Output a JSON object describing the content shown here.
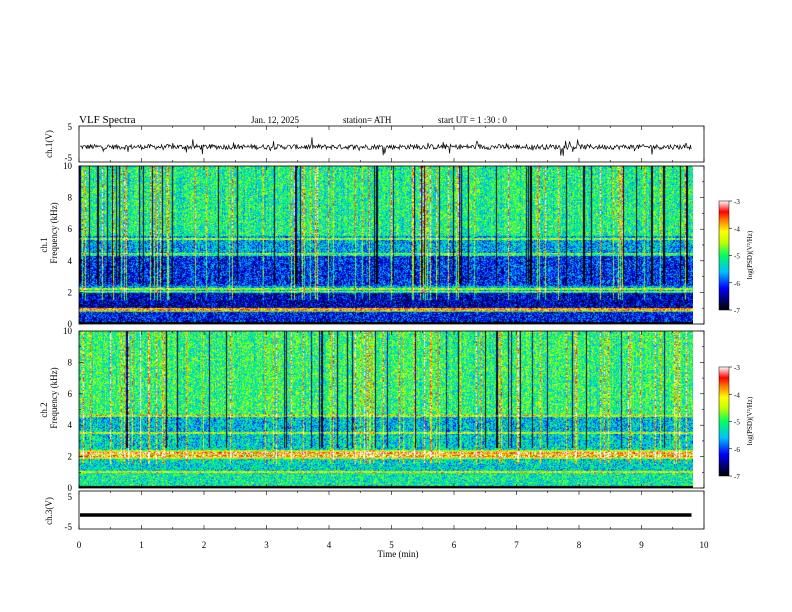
{
  "header": {
    "title": "VLF  Spectra",
    "date": "Jan. 12, 2025",
    "station": "station= ATH",
    "start": "start  UT  =   1  :30 : 0"
  },
  "chart_data": [
    {
      "type": "line",
      "panel": "ch1-waveform",
      "ylabel": "ch.1(V)",
      "yticks": [
        "5",
        "-5"
      ],
      "ylim": [
        -5,
        5
      ],
      "xlim": [
        0,
        10
      ],
      "x_end": 9.8,
      "baseline": -0.8,
      "note_values": "noisy waveform trace around about -0.8 V with spikes"
    },
    {
      "type": "heatmap",
      "panel": "ch1-spectrogram",
      "ylabel_channel": "ch.1",
      "ylabel": "Frequency  (kHz)",
      "yticks": [
        "0",
        "2",
        "4",
        "6",
        "8",
        "10"
      ],
      "ylim": [
        0,
        10
      ],
      "xlim": [
        0,
        10
      ],
      "colorbar": {
        "label": "log(PSD)(V²/Hz)",
        "ticks": [
          "-3",
          "-4",
          "-5",
          "-6",
          "-7"
        ],
        "range": [
          -7,
          -3
        ]
      },
      "bands": [
        {
          "f": [
            0.0,
            0.8
          ],
          "level": -6.2
        },
        {
          "f": [
            0.8,
            1.0
          ],
          "level": -4.8
        },
        {
          "f": [
            1.0,
            2.0
          ],
          "level": -6.4
        },
        {
          "f": [
            2.0,
            2.4
          ],
          "level": -5.6
        },
        {
          "f": [
            2.4,
            4.4
          ],
          "level": -6.1
        },
        {
          "f": [
            4.4,
            5.6
          ],
          "level": -5.6
        },
        {
          "f": [
            5.6,
            10.0
          ],
          "level": -5.1
        }
      ],
      "lines_khz": [
        0.8,
        0.9,
        2.0,
        2.2,
        4.4,
        5.4
      ]
    },
    {
      "type": "heatmap",
      "panel": "ch2-spectrogram",
      "ylabel_channel": "ch.2",
      "ylabel": "Frequency  (kHz)",
      "yticks": [
        "0",
        "2",
        "4",
        "6",
        "8",
        "10"
      ],
      "ylim": [
        0,
        10
      ],
      "xlim": [
        0,
        10
      ],
      "colorbar": {
        "label": "log(PSD)(V²/Hz)",
        "ticks": [
          "-3",
          "-4",
          "-5",
          "-6",
          "-7"
        ],
        "range": [
          -7,
          -3
        ]
      },
      "bands": [
        {
          "f": [
            0.0,
            1.0
          ],
          "level": -5.2
        },
        {
          "f": [
            1.0,
            1.8
          ],
          "level": -5.4
        },
        {
          "f": [
            1.8,
            2.4
          ],
          "level": -4.4
        },
        {
          "f": [
            2.4,
            3.6
          ],
          "level": -5.4
        },
        {
          "f": [
            3.6,
            4.6
          ],
          "level": -5.5
        },
        {
          "f": [
            4.6,
            10.0
          ],
          "level": -5.0
        }
      ],
      "lines_khz": [
        1.0,
        2.0,
        2.2,
        3.5,
        4.6
      ]
    },
    {
      "type": "line",
      "panel": "ch3-waveform",
      "ylabel": "ch.3(V)",
      "yticks": [
        "5",
        "-5"
      ],
      "ylim": [
        -5,
        5
      ],
      "xlim": [
        0,
        10
      ],
      "x_end": 9.8,
      "baseline": -1.3,
      "note_values": "flat thick trace near -1.3 V"
    },
    {
      "type": "axis",
      "panel": "time-axis",
      "xlabel": "Time  (min)",
      "xticks": [
        "0",
        "1",
        "2",
        "3",
        "4",
        "5",
        "6",
        "7",
        "8",
        "9",
        "10"
      ],
      "xlim": [
        0,
        10
      ]
    }
  ]
}
